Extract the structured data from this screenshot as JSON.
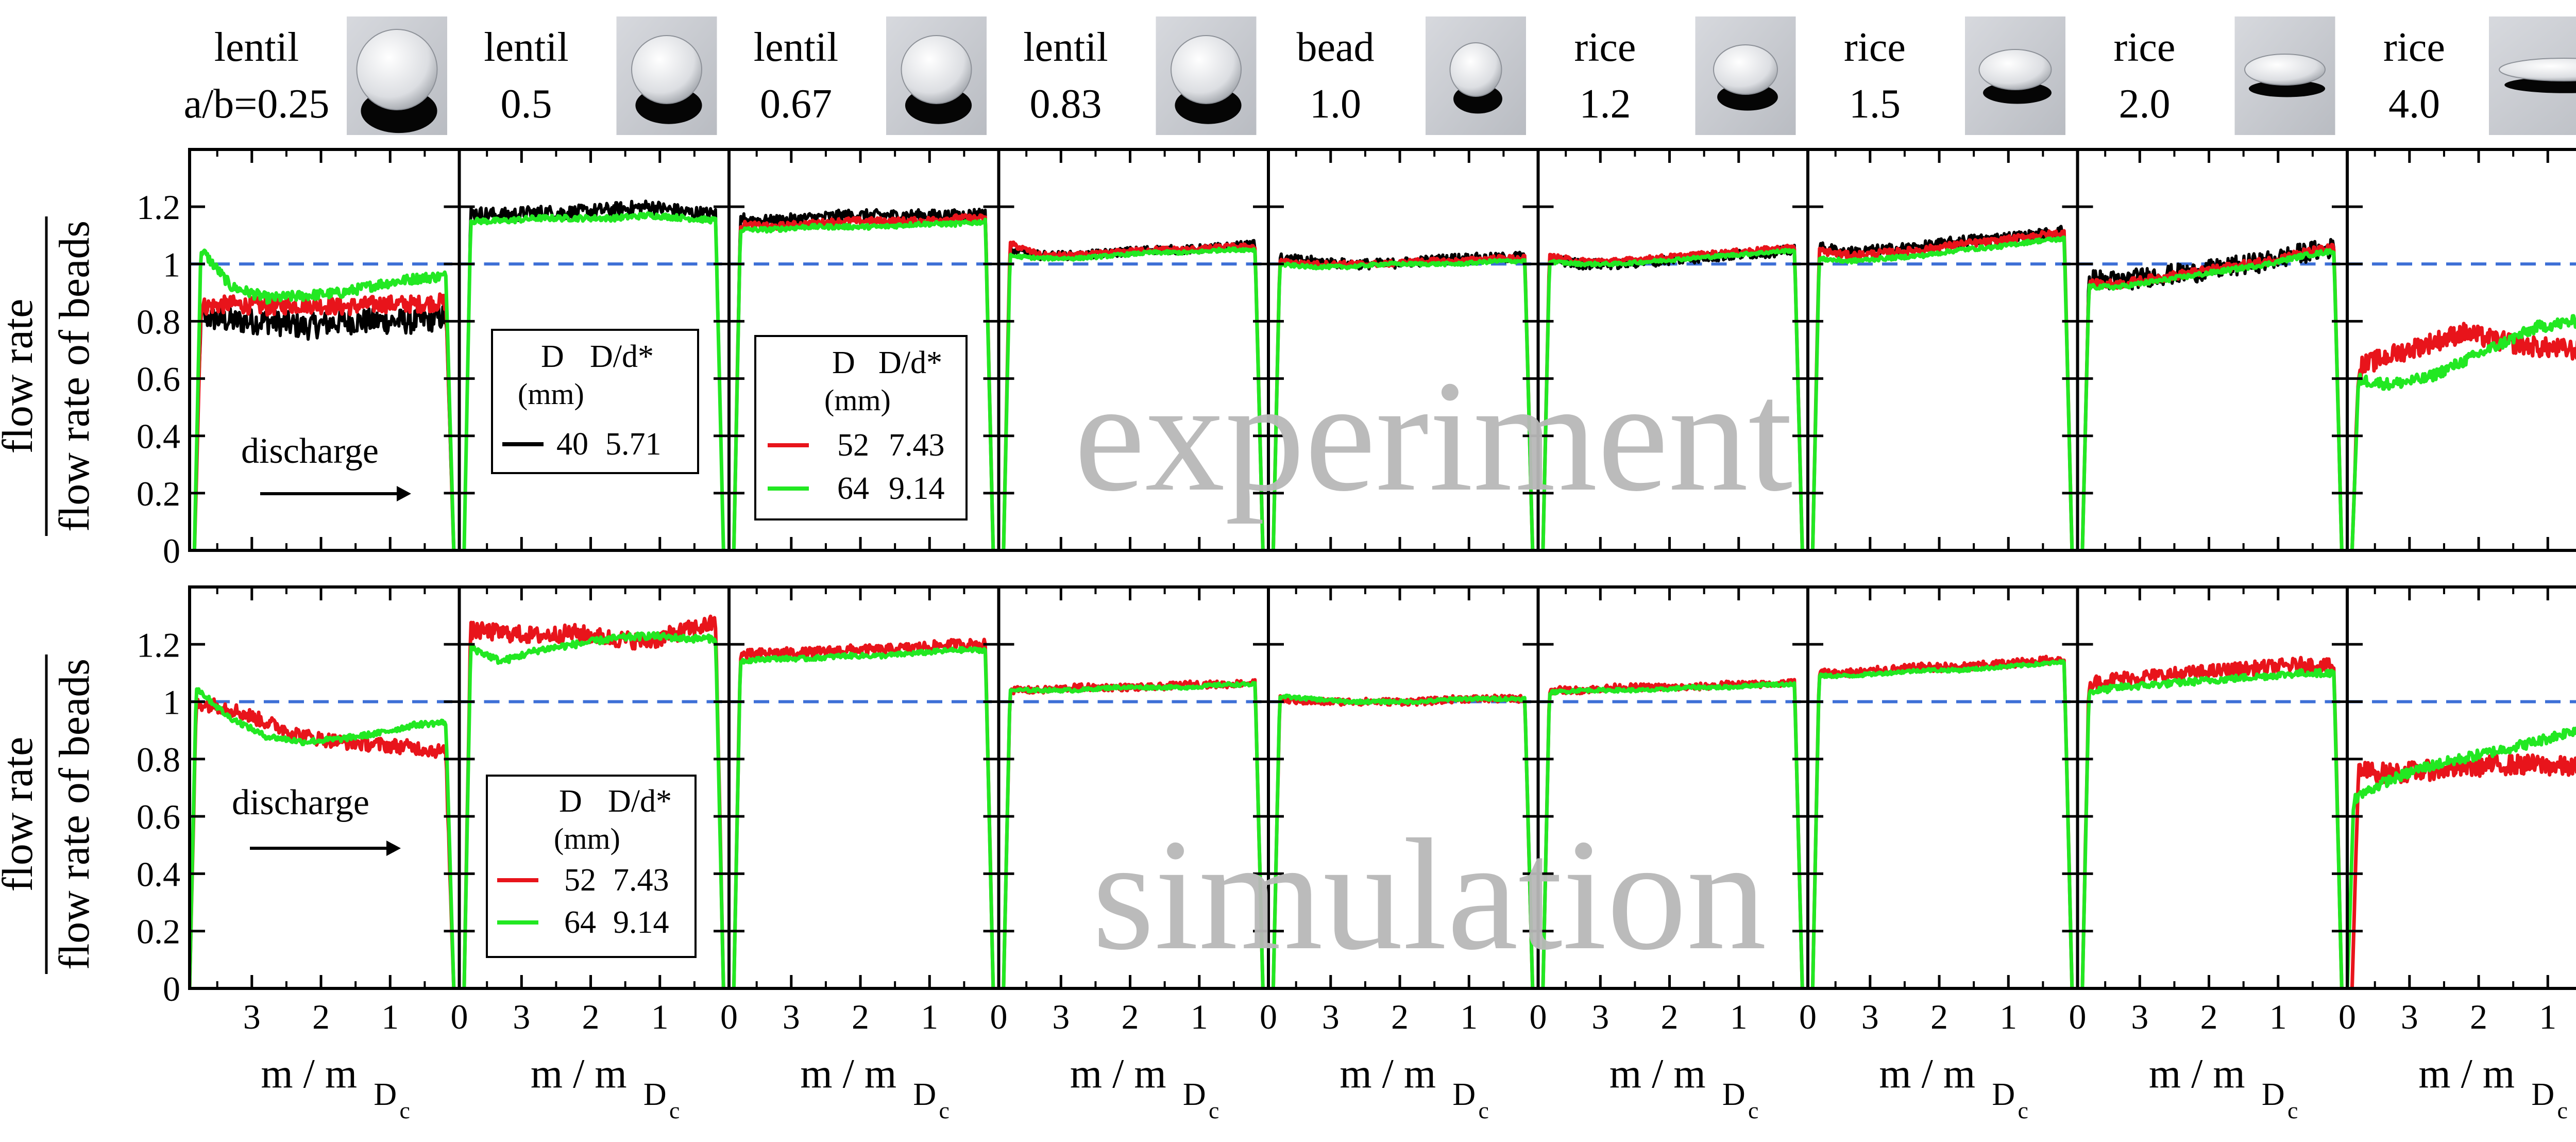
{
  "figure": {
    "ylabel_numerator": "flow rate",
    "ylabel_denominator": "flow rate of beads",
    "xlabel": "m / m",
    "xlabel_sub": "D",
    "xlabel_subsub": "c",
    "watermark_top": "experiment",
    "watermark_bottom": "simulation",
    "annotation_discharge": "discharge"
  },
  "columns": [
    {
      "name": "lentil",
      "ratio": "a/b=0.25",
      "photo": "flat-disc"
    },
    {
      "name": "lentil",
      "ratio": "0.5",
      "photo": "disc"
    },
    {
      "name": "lentil",
      "ratio": "0.67",
      "photo": "disc"
    },
    {
      "name": "lentil",
      "ratio": "0.83",
      "photo": "disc"
    },
    {
      "name": "bead",
      "ratio": "1.0",
      "photo": "sphere"
    },
    {
      "name": "rice",
      "ratio": "1.2",
      "photo": "ellipsoid"
    },
    {
      "name": "rice",
      "ratio": "1.5",
      "photo": "ellipsoid"
    },
    {
      "name": "rice",
      "ratio": "2.0",
      "photo": "ellipsoid"
    },
    {
      "name": "rice",
      "ratio": "4.0",
      "photo": "long-ellipsoid"
    }
  ],
  "legends": {
    "experiment_black": {
      "header1": "D",
      "header2": "D/d*",
      "unit": "(mm)",
      "rows": [
        {
          "d": "40",
          "ratio": "5.71"
        }
      ]
    },
    "experiment_color": {
      "header1": "D",
      "header2": "D/d*",
      "unit": "(mm)",
      "rows": [
        {
          "d": "52",
          "ratio": "7.43"
        },
        {
          "d": "64",
          "ratio": "9.14"
        }
      ]
    },
    "simulation": {
      "header1": "D",
      "header2": "D/d*",
      "unit": "(mm)",
      "rows": [
        {
          "d": "52",
          "ratio": "7.43"
        },
        {
          "d": "64",
          "ratio": "9.14"
        }
      ]
    }
  },
  "chart_data": {
    "type": "line",
    "layout": "grid 2 rows x 9 columns of panels",
    "x_axis": {
      "label": "m / m_Dc",
      "lim": [
        3.9,
        0
      ],
      "reversed": true,
      "ticks": [
        "3",
        "2",
        "1",
        "0"
      ]
    },
    "y_axis": {
      "label": "flow rate / flow rate of beads",
      "lim": [
        0,
        1.4
      ],
      "ticks": [
        "0",
        "0.2",
        "0.4",
        "0.6",
        "0.8",
        "1",
        "1.2"
      ]
    },
    "reference_line": {
      "y": 1.0,
      "style": "dashed",
      "color": "#3d6fd6"
    },
    "colors": {
      "D40": "#000000",
      "D52": "#e8141b",
      "D64": "#22e822"
    },
    "experiment": [
      {
        "series": [
          {
            "name": "40",
            "color": "#000000",
            "start": 3.83,
            "end": 0.08,
            "levels": [
              0.82,
              0.8,
              0.8,
              0.78,
              0.8,
              0.8,
              0.8,
              0.82
            ],
            "noise": 0.045
          },
          {
            "name": "52",
            "color": "#e8141b",
            "start": 3.83,
            "end": 0.08,
            "levels": [
              0.85,
              0.86,
              0.85,
              0.86,
              0.85,
              0.86,
              0.86,
              0.87
            ],
            "noise": 0.03
          },
          {
            "name": "64",
            "color": "#22e822",
            "start": 3.83,
            "end": 0.08,
            "levels": [
              1.08,
              0.92,
              0.88,
              0.89,
              0.9,
              0.93,
              0.95,
              0.96
            ],
            "noise": 0.018
          }
        ]
      },
      {
        "series": [
          {
            "name": "40",
            "color": "#000000",
            "start": 3.83,
            "end": 0.08,
            "levels": [
              1.18,
              1.17,
              1.18,
              1.18,
              1.19,
              1.2,
              1.18,
              1.17
            ],
            "noise": 0.025
          },
          {
            "name": "64",
            "color": "#22e822",
            "start": 3.83,
            "end": 0.08,
            "levels": [
              1.15,
              1.15,
              1.16,
              1.16,
              1.16,
              1.17,
              1.16,
              1.15
            ],
            "noise": 0.01
          }
        ]
      },
      {
        "series": [
          {
            "name": "40",
            "color": "#000000",
            "start": 3.83,
            "end": 0.08,
            "levels": [
              1.16,
              1.15,
              1.16,
              1.17,
              1.17,
              1.17,
              1.17,
              1.18
            ],
            "noise": 0.02
          },
          {
            "name": "52",
            "color": "#e8141b",
            "start": 3.83,
            "end": 0.08,
            "levels": [
              1.14,
              1.13,
              1.14,
              1.15,
              1.15,
              1.15,
              1.16,
              1.16
            ],
            "noise": 0.012
          },
          {
            "name": "64",
            "color": "#22e822",
            "start": 3.83,
            "end": 0.08,
            "levels": [
              1.12,
              1.12,
              1.13,
              1.13,
              1.13,
              1.14,
              1.14,
              1.15
            ],
            "noise": 0.008
          }
        ]
      },
      {
        "series": [
          {
            "name": "40",
            "color": "#000000",
            "start": 3.83,
            "end": 0.08,
            "levels": [
              1.05,
              1.03,
              1.03,
              1.04,
              1.05,
              1.05,
              1.06,
              1.07
            ],
            "noise": 0.015
          },
          {
            "name": "52",
            "color": "#e8141b",
            "start": 3.83,
            "end": 0.08,
            "levels": [
              1.08,
              1.03,
              1.03,
              1.04,
              1.05,
              1.05,
              1.06,
              1.06
            ],
            "noise": 0.01
          },
          {
            "name": "64",
            "color": "#22e822",
            "start": 3.83,
            "end": 0.08,
            "levels": [
              1.03,
              1.02,
              1.02,
              1.03,
              1.04,
              1.04,
              1.05,
              1.05
            ],
            "noise": 0.006
          }
        ]
      },
      {
        "series": [
          {
            "name": "40",
            "color": "#000000",
            "start": 3.83,
            "end": 0.08,
            "levels": [
              1.02,
              1.01,
              1.0,
              1.0,
              1.01,
              1.02,
              1.02,
              1.03
            ],
            "noise": 0.018
          },
          {
            "name": "52",
            "color": "#e8141b",
            "start": 3.83,
            "end": 0.08,
            "levels": [
              1.01,
              1.0,
              1.0,
              1.0,
              1.01,
              1.01,
              1.02,
              1.02
            ],
            "noise": 0.01
          },
          {
            "name": "64",
            "color": "#22e822",
            "start": 3.83,
            "end": 0.08,
            "levels": [
              1.0,
              0.99,
              0.99,
              1.0,
              1.0,
              1.0,
              1.01,
              1.01
            ],
            "noise": 0.006
          }
        ]
      },
      {
        "series": [
          {
            "name": "40",
            "color": "#000000",
            "start": 3.83,
            "end": 0.08,
            "levels": [
              1.02,
              1.0,
              1.0,
              1.01,
              1.02,
              1.03,
              1.04,
              1.05
            ],
            "noise": 0.018
          },
          {
            "name": "52",
            "color": "#e8141b",
            "start": 3.83,
            "end": 0.08,
            "levels": [
              1.03,
              1.01,
              1.01,
              1.02,
              1.03,
              1.04,
              1.05,
              1.06
            ],
            "noise": 0.01
          },
          {
            "name": "64",
            "color": "#22e822",
            "start": 3.83,
            "end": 0.08,
            "levels": [
              1.01,
              1.0,
              1.0,
              1.01,
              1.02,
              1.03,
              1.04,
              1.05
            ],
            "noise": 0.006
          }
        ]
      },
      {
        "series": [
          {
            "name": "40",
            "color": "#000000",
            "start": 3.83,
            "end": 0.08,
            "levels": [
              1.06,
              1.04,
              1.05,
              1.06,
              1.08,
              1.09,
              1.1,
              1.12
            ],
            "noise": 0.02
          },
          {
            "name": "52",
            "color": "#e8141b",
            "start": 3.83,
            "end": 0.08,
            "levels": [
              1.05,
              1.03,
              1.04,
              1.05,
              1.07,
              1.08,
              1.1,
              1.11
            ],
            "noise": 0.012
          },
          {
            "name": "64",
            "color": "#22e822",
            "start": 3.83,
            "end": 0.08,
            "levels": [
              1.02,
              1.01,
              1.02,
              1.03,
              1.05,
              1.06,
              1.08,
              1.09
            ],
            "noise": 0.007
          }
        ]
      },
      {
        "series": [
          {
            "name": "40",
            "color": "#000000",
            "start": 3.83,
            "end": 0.08,
            "levels": [
              0.95,
              0.94,
              0.96,
              0.97,
              0.99,
              1.01,
              1.04,
              1.06
            ],
            "noise": 0.035
          },
          {
            "name": "52",
            "color": "#e8141b",
            "start": 3.83,
            "end": 0.08,
            "levels": [
              0.93,
              0.93,
              0.95,
              0.97,
              0.99,
              1.01,
              1.04,
              1.06
            ],
            "noise": 0.015
          },
          {
            "name": "64",
            "color": "#22e822",
            "start": 3.83,
            "end": 0.08,
            "levels": [
              0.92,
              0.92,
              0.94,
              0.96,
              0.98,
              1.0,
              1.03,
              1.05
            ],
            "noise": 0.008
          }
        ]
      },
      {
        "series": [
          {
            "name": "52",
            "color": "#e8141b",
            "start": 3.83,
            "end": 0.08,
            "levels": [
              0.63,
              0.68,
              0.72,
              0.76,
              0.73,
              0.71,
              0.7,
              0.68
            ],
            "noise": 0.035
          },
          {
            "name": "64",
            "color": "#22e822",
            "start": 3.83,
            "end": 0.08,
            "levels": [
              0.6,
              0.58,
              0.6,
              0.66,
              0.72,
              0.78,
              0.8,
              0.74
            ],
            "noise": 0.02
          }
        ]
      }
    ],
    "simulation": [
      {
        "series": [
          {
            "name": "52",
            "color": "#e8141b",
            "start": 3.9,
            "end": 0.08,
            "levels": [
              1.0,
              0.98,
              0.93,
              0.88,
              0.86,
              0.85,
              0.84,
              0.82
            ],
            "noise": 0.025
          },
          {
            "name": "64",
            "color": "#22e822",
            "start": 3.9,
            "end": 0.08,
            "levels": [
              1.07,
              0.95,
              0.88,
              0.86,
              0.87,
              0.89,
              0.92,
              0.93
            ],
            "noise": 0.01
          }
        ]
      },
      {
        "series": [
          {
            "name": "52",
            "color": "#e8141b",
            "start": 3.83,
            "end": 0.08,
            "levels": [
              1.25,
              1.24,
              1.23,
              1.24,
              1.22,
              1.21,
              1.25,
              1.28
            ],
            "noise": 0.03
          },
          {
            "name": "64",
            "color": "#22e822",
            "start": 3.83,
            "end": 0.08,
            "levels": [
              1.2,
              1.14,
              1.18,
              1.2,
              1.22,
              1.23,
              1.22,
              1.22
            ],
            "noise": 0.012
          }
        ]
      },
      {
        "series": [
          {
            "name": "52",
            "color": "#e8141b",
            "start": 3.83,
            "end": 0.08,
            "levels": [
              1.16,
              1.17,
              1.17,
              1.18,
              1.18,
              1.19,
              1.2,
              1.2
            ],
            "noise": 0.018
          },
          {
            "name": "64",
            "color": "#22e822",
            "start": 3.83,
            "end": 0.08,
            "levels": [
              1.14,
              1.15,
              1.15,
              1.16,
              1.16,
              1.17,
              1.18,
              1.18
            ],
            "noise": 0.008
          }
        ]
      },
      {
        "series": [
          {
            "name": "52",
            "color": "#e8141b",
            "start": 3.83,
            "end": 0.08,
            "levels": [
              1.04,
              1.04,
              1.05,
              1.05,
              1.05,
              1.06,
              1.06,
              1.07
            ],
            "noise": 0.012
          },
          {
            "name": "64",
            "color": "#22e822",
            "start": 3.83,
            "end": 0.08,
            "levels": [
              1.04,
              1.04,
              1.04,
              1.05,
              1.05,
              1.05,
              1.06,
              1.06
            ],
            "noise": 0.006
          }
        ]
      },
      {
        "series": [
          {
            "name": "52",
            "color": "#e8141b",
            "start": 3.83,
            "end": 0.08,
            "levels": [
              1.01,
              1.0,
              1.0,
              1.0,
              1.0,
              1.01,
              1.01,
              1.01
            ],
            "noise": 0.012
          },
          {
            "name": "64",
            "color": "#22e822",
            "start": 3.83,
            "end": 0.08,
            "levels": [
              1.02,
              1.01,
              1.0,
              1.0,
              1.0,
              1.01,
              1.01,
              1.01
            ],
            "noise": 0.006
          }
        ]
      },
      {
        "series": [
          {
            "name": "52",
            "color": "#e8141b",
            "start": 3.83,
            "end": 0.08,
            "levels": [
              1.04,
              1.04,
              1.05,
              1.05,
              1.05,
              1.06,
              1.06,
              1.07
            ],
            "noise": 0.012
          },
          {
            "name": "64",
            "color": "#22e822",
            "start": 3.83,
            "end": 0.08,
            "levels": [
              1.03,
              1.04,
              1.04,
              1.04,
              1.05,
              1.05,
              1.06,
              1.06
            ],
            "noise": 0.006
          }
        ]
      },
      {
        "series": [
          {
            "name": "52",
            "color": "#e8141b",
            "start": 3.83,
            "end": 0.08,
            "levels": [
              1.1,
              1.1,
              1.11,
              1.12,
              1.12,
              1.13,
              1.14,
              1.15
            ],
            "noise": 0.015
          },
          {
            "name": "64",
            "color": "#22e822",
            "start": 3.83,
            "end": 0.08,
            "levels": [
              1.09,
              1.09,
              1.1,
              1.11,
              1.11,
              1.12,
              1.13,
              1.14
            ],
            "noise": 0.006
          }
        ]
      },
      {
        "series": [
          {
            "name": "52",
            "color": "#e8141b",
            "start": 3.83,
            "end": 0.08,
            "levels": [
              1.06,
              1.08,
              1.09,
              1.1,
              1.11,
              1.12,
              1.13,
              1.12
            ],
            "noise": 0.025
          },
          {
            "name": "64",
            "color": "#22e822",
            "start": 3.83,
            "end": 0.08,
            "levels": [
              1.03,
              1.05,
              1.06,
              1.07,
              1.08,
              1.09,
              1.1,
              1.1
            ],
            "noise": 0.012
          }
        ]
      },
      {
        "series": [
          {
            "name": "52",
            "color": "#e8141b",
            "start": 3.83,
            "end": 0.08,
            "levels": [
              0.76,
              0.75,
              0.76,
              0.77,
              0.78,
              0.78,
              0.77,
              0.76
            ],
            "noise": 0.035
          },
          {
            "name": "64",
            "color": "#22e822",
            "start": 3.9,
            "end": 0.08,
            "levels": [
              0.65,
              0.72,
              0.77,
              0.8,
              0.83,
              0.86,
              0.9,
              0.94
            ],
            "noise": 0.018
          }
        ]
      }
    ]
  }
}
